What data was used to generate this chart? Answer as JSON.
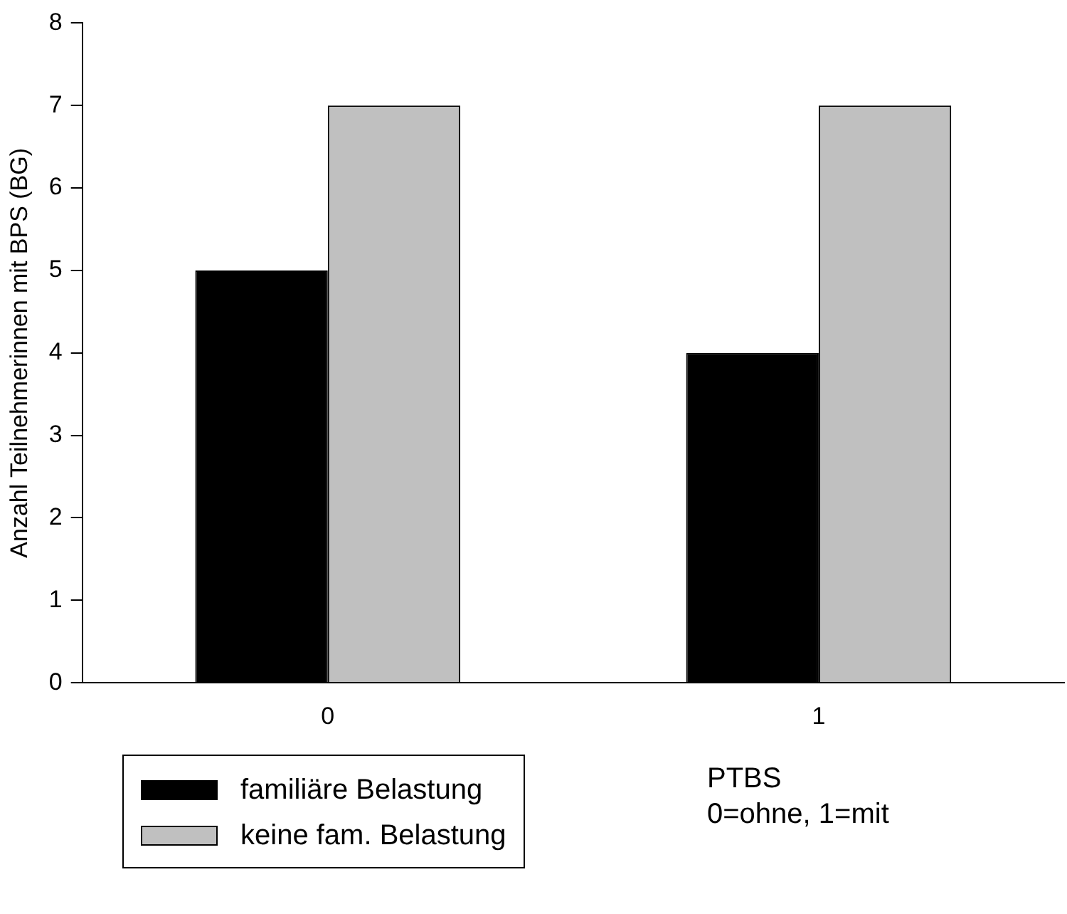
{
  "chart_data": {
    "type": "bar",
    "ylabel": "Anzahl Teilnehmerinnen mit BPS (BG)",
    "xlabel": "PTBS\n0=ohne, 1=mit",
    "categories": [
      "0",
      "1"
    ],
    "series": [
      {
        "name": "familiäre Belastung",
        "color": "#000000",
        "values": [
          5,
          4
        ]
      },
      {
        "name": "keine fam. Belastung",
        "color": "#c0c0c0",
        "values": [
          7,
          7
        ]
      }
    ],
    "ylim": [
      0,
      8
    ],
    "yticks": [
      0,
      1,
      2,
      3,
      4,
      5,
      6,
      7,
      8
    ],
    "grid": false,
    "legend": "bottom left"
  }
}
